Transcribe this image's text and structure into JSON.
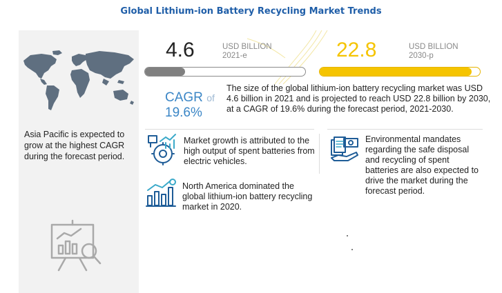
{
  "title": "Global Lithium-ion Battery Recycling Market Trends",
  "stats": {
    "current": {
      "value": "4.6",
      "unit": "USD BILLION",
      "year": "2021-e",
      "fill_fraction": 0.25,
      "color": "#808080"
    },
    "projected": {
      "value": "22.8",
      "unit": "USD BILLION",
      "year": "2030-p",
      "fill_fraction": 0.95,
      "color": "#f5c400"
    }
  },
  "cagr": {
    "label": "CAGR",
    "of_text": "of",
    "value": "19.6%"
  },
  "summary": "The size of the global lithium-ion battery recycling market was USD 4.6 billion in 2021 and is projected to reach USD 22.8 billion by 2030, at a CAGR of 19.6% during the forecast period, 2021-2030.",
  "sidebar": {
    "region_text": "Asia Pacific is expected to grow at the highest CAGR during the forecast period."
  },
  "insights": [
    {
      "icon": "growth-gear-icon",
      "text": "Market growth is attributed to the high output of spent batteries from electric vehicles."
    },
    {
      "icon": "bar-chart-dollar-icon",
      "text": "North America dominated the global lithium-ion battery recycling market in 2020."
    },
    {
      "icon": "documents-money-icon",
      "text": "Environmental mandates regarding the safe disposal and recycling of spent batteries are also expected to drive the market during the forecast period."
    }
  ],
  "colors": {
    "title": "#1f5ea8",
    "cagr": "#3b86c6",
    "accent_yellow": "#f5c400",
    "accent_gray": "#808080",
    "panel": "#f2f2f2"
  }
}
